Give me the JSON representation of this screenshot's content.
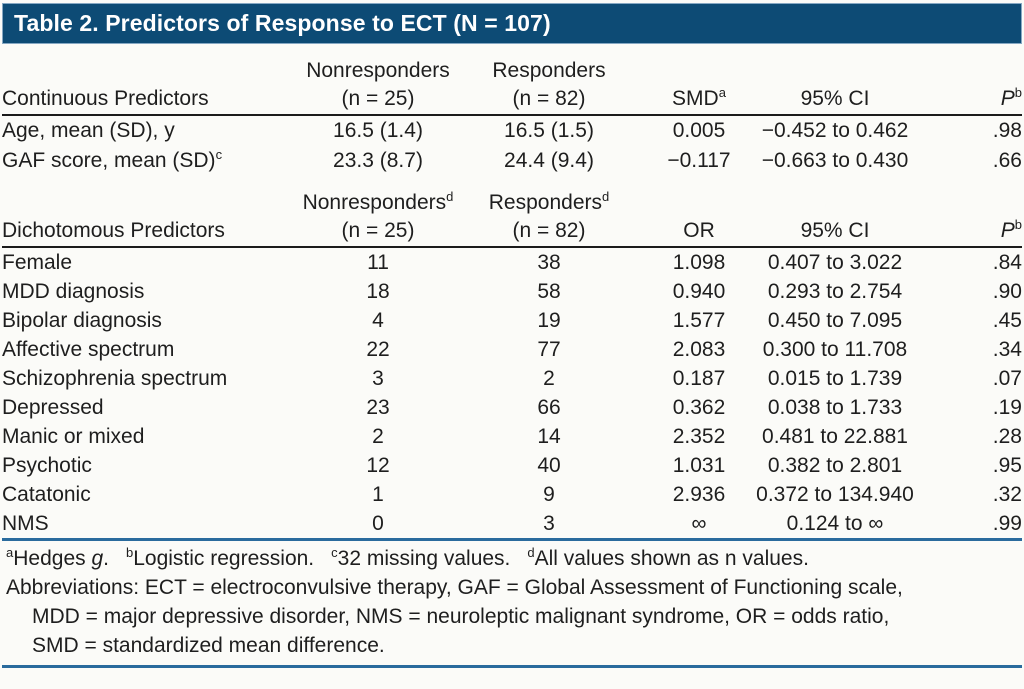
{
  "title": "Table 2. Predictors of Response to ECT (N = 107)",
  "colors": {
    "title_bar_bg": "#0d4b75",
    "title_text": "#ffffff",
    "rule_blue": "#2a6b9d",
    "rule_dark": "#1b1b1b",
    "body_text": "#1e1e1e",
    "page_bg": "#fbfbf8"
  },
  "continuous": {
    "header": {
      "col1": "Continuous Predictors",
      "col2_line1": "Nonresponders",
      "col2_sup": "",
      "col2_line2": "(n = 25)",
      "col3_line1": "Responders",
      "col3_sup": "",
      "col3_line2": "(n = 82)",
      "col4": "SMD",
      "col4_sup": "a",
      "col5": "95% CI",
      "col6": "P",
      "col6_sup": "b"
    },
    "rows": [
      {
        "label": "Age, mean (SD), y",
        "label_sup": "",
        "nonresponders": "16.5 (1.4)",
        "responders": "16.5 (1.5)",
        "stat": "0.005",
        "ci": "−0.452 to 0.462",
        "p": ".98"
      },
      {
        "label": "GAF score, mean (SD)",
        "label_sup": "c",
        "nonresponders": "23.3 (8.7)",
        "responders": "24.4 (9.4)",
        "stat": "−0.117",
        "ci": "−0.663 to 0.430",
        "p": ".66"
      }
    ]
  },
  "dichotomous": {
    "header": {
      "col1": "Dichotomous Predictors",
      "col2_line1": "Nonresponders",
      "col2_sup": "d",
      "col2_line2": "(n = 25)",
      "col3_line1": "Responders",
      "col3_sup": "d",
      "col3_line2": "(n = 82)",
      "col4": "OR",
      "col4_sup": "",
      "col5": "95% CI",
      "col6": "P",
      "col6_sup": "b"
    },
    "rows": [
      {
        "label": "Female",
        "label_sup": "",
        "nonresponders": "11",
        "responders": "38",
        "stat": "1.098",
        "ci": "0.407 to 3.022",
        "p": ".84"
      },
      {
        "label": "MDD diagnosis",
        "label_sup": "",
        "nonresponders": "18",
        "responders": "58",
        "stat": "0.940",
        "ci": "0.293 to 2.754",
        "p": ".90"
      },
      {
        "label": "Bipolar diagnosis",
        "label_sup": "",
        "nonresponders": "4",
        "responders": "19",
        "stat": "1.577",
        "ci": "0.450 to 7.095",
        "p": ".45"
      },
      {
        "label": "Affective spectrum",
        "label_sup": "",
        "nonresponders": "22",
        "responders": "77",
        "stat": "2.083",
        "ci": "0.300 to 11.708",
        "p": ".34"
      },
      {
        "label": "Schizophrenia spectrum",
        "label_sup": "",
        "nonresponders": "3",
        "responders": "2",
        "stat": "0.187",
        "ci": "0.015 to 1.739",
        "p": ".07"
      },
      {
        "label": "Depressed",
        "label_sup": "",
        "nonresponders": "23",
        "responders": "66",
        "stat": "0.362",
        "ci": "0.038 to 1.733",
        "p": ".19"
      },
      {
        "label": "Manic or mixed",
        "label_sup": "",
        "nonresponders": "2",
        "responders": "14",
        "stat": "2.352",
        "ci": "0.481 to 22.881",
        "p": ".28"
      },
      {
        "label": "Psychotic",
        "label_sup": "",
        "nonresponders": "12",
        "responders": "40",
        "stat": "1.031",
        "ci": "0.382 to 2.801",
        "p": ".95"
      },
      {
        "label": "Catatonic",
        "label_sup": "",
        "nonresponders": "1",
        "responders": "9",
        "stat": "2.936",
        "ci": "0.372 to 134.940",
        "p": ".32"
      },
      {
        "label": "NMS",
        "label_sup": "",
        "nonresponders": "0",
        "responders": "3",
        "stat": "∞",
        "ci": "0.124 to ∞",
        "p": ".99"
      }
    ]
  },
  "footnotes": {
    "note_a": {
      "sup": "a",
      "before": "Hedges ",
      "italic": "g",
      "after": "."
    },
    "note_b": {
      "sup": "b",
      "text": "Logistic regression."
    },
    "note_c": {
      "sup": "c",
      "text": "32 missing values."
    },
    "note_d": {
      "sup": "d",
      "text": "All values shown as n values."
    },
    "abbrev_lines": [
      "Abbreviations: ECT = electroconvulsive therapy, GAF = Global Assessment of Functioning scale,",
      "MDD = major depressive disorder, NMS = neuroleptic malignant syndrome, OR = odds ratio,",
      "SMD = standardized mean difference."
    ]
  }
}
